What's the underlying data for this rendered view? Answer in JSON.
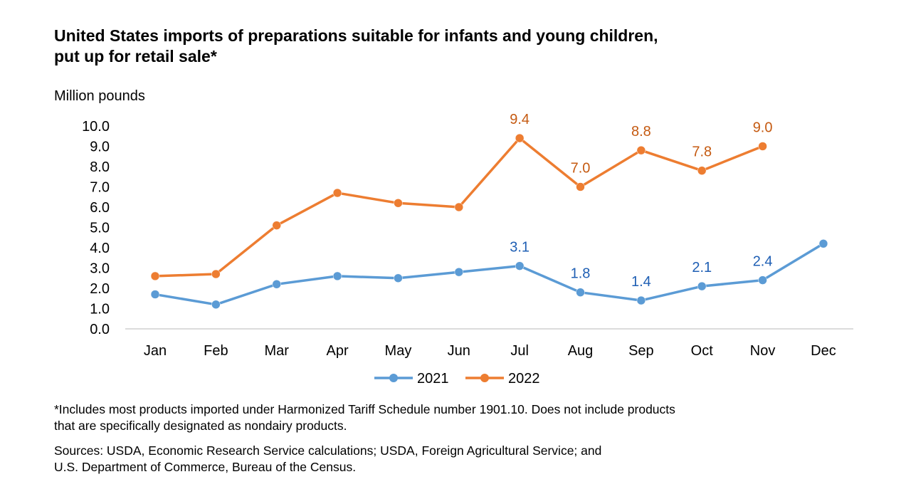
{
  "title_line1": "United States imports of preparations suitable for infants and young children,",
  "title_line2": "put up for retail sale*",
  "footnote_line1": "*Includes most products imported under Harmonized Tariff Schedule number 1901.10. Does not include products",
  "footnote_line2": "that are specifically designated as nondairy products.",
  "sources_line1": "Sources: USDA, Economic Research Service calculations; USDA, Foreign Agricultural Service; and",
  "sources_line2": "U.S. Department of Commerce, Bureau of the Census.",
  "chart_data": {
    "type": "line",
    "ylabel": "Million pounds",
    "ylim": [
      0,
      10
    ],
    "yticks": [
      "0.0",
      "1.0",
      "2.0",
      "3.0",
      "4.0",
      "5.0",
      "6.0",
      "7.0",
      "8.0",
      "9.0",
      "10.0"
    ],
    "categories": [
      "Jan",
      "Feb",
      "Mar",
      "Apr",
      "May",
      "Jun",
      "Jul",
      "Aug",
      "Sep",
      "Oct",
      "Nov",
      "Dec"
    ],
    "legend_position": "bottom",
    "series": [
      {
        "name": "2021",
        "color": "#5b9bd5",
        "label_color": "#1f5fb4",
        "values": [
          1.7,
          1.2,
          2.2,
          2.6,
          2.5,
          2.8,
          3.1,
          1.8,
          1.4,
          2.1,
          2.4,
          4.2
        ],
        "labels": [
          null,
          null,
          null,
          null,
          null,
          null,
          "3.1",
          "1.8",
          "1.4",
          "2.1",
          "2.4",
          null
        ]
      },
      {
        "name": "2022",
        "color": "#ed7d31",
        "label_color": "#c55a11",
        "values": [
          2.6,
          2.7,
          5.1,
          6.7,
          6.2,
          6.0,
          9.4,
          7.0,
          8.8,
          7.8,
          9.0,
          null
        ],
        "labels": [
          null,
          null,
          null,
          null,
          null,
          null,
          "9.4",
          "7.0",
          "8.8",
          "7.8",
          "9.0",
          null
        ]
      }
    ]
  }
}
